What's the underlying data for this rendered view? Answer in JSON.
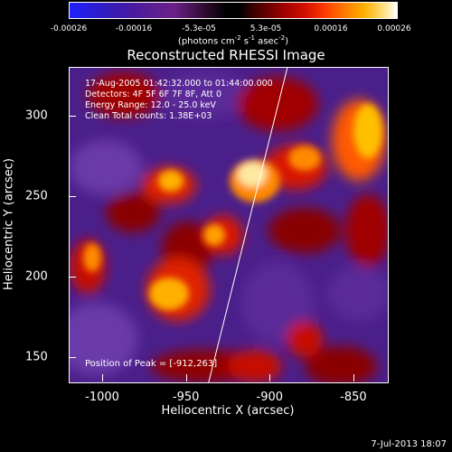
{
  "colorbar": {
    "ticks": [
      "-0.00026",
      "-0.00016",
      "-5.3e-05",
      "5.3e-05",
      "0.00016",
      "0.00026"
    ],
    "units_text": "(photons cm",
    "units_sup1": "-2",
    "units_mid": " s",
    "units_sup2": "-1",
    "units_end": " asec",
    "units_sup3": "-2",
    "units_close": ")"
  },
  "info": {
    "time_range": "17-Aug-2005 01:42:32.000 to 01:44:00.000",
    "detectors": "Detectors: 4F 5F 6F 7F 8F, Att 0",
    "energy": "Energy Range: 12.0 - 25.0 keV",
    "clean": "Clean     Total counts: 1.38E+03",
    "peak": "Position of Peak = [-912,263]"
  },
  "timestamp": "7-Jul-2013 18:07",
  "chart_data": {
    "type": "heatmap",
    "title": "Reconstructed RHESSI Image",
    "xlabel": "Heliocentric X (arcsec)",
    "ylabel": "Heliocentric Y (arcsec)",
    "xlim": [
      -1020,
      -830
    ],
    "ylim": [
      135,
      330
    ],
    "xticks": [
      "-1000",
      "-950",
      "-900",
      "-850"
    ],
    "yticks": [
      "150",
      "200",
      "250",
      "300"
    ],
    "peak": [
      -912,
      263
    ],
    "colorbar_range": [
      -0.00026,
      0.00026
    ],
    "limb_line": [
      [
        -937,
        135
      ],
      [
        -890,
        330
      ]
    ]
  }
}
